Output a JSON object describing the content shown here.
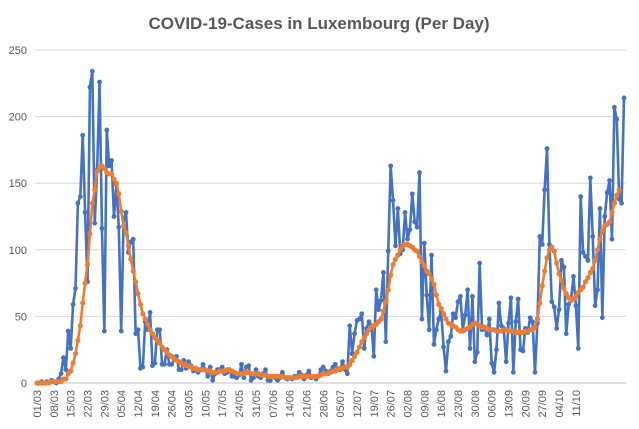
{
  "chart_data": {
    "type": "line",
    "title": "COVID-19-Cases in Luxembourg (Per Day)",
    "xlabel": "",
    "ylabel": "",
    "ylim": [
      0,
      250
    ],
    "yticks": [
      0,
      50,
      100,
      150,
      200,
      250
    ],
    "grid": true,
    "legend": "none",
    "start_date": "2020-03-01",
    "end_date": "2020-10-14",
    "x_tick_labels": [
      "01/03",
      "08/03",
      "15/03",
      "22/03",
      "29/03",
      "05/04",
      "12/04",
      "19/04",
      "26/04",
      "03/05",
      "10/05",
      "17/05",
      "24/05",
      "31/05",
      "07/06",
      "14/06",
      "21/06",
      "28/06",
      "05/07",
      "12/07",
      "19/07",
      "26/07",
      "02/08",
      "09/08",
      "16/08",
      "23/08",
      "30/08",
      "06/09",
      "13/09",
      "20/09",
      "27/09",
      "04/10",
      "11/10"
    ],
    "colors": {
      "daily": "#4472C4",
      "average": "#ED7D31"
    },
    "series": [
      {
        "key": "daily",
        "values": [
          0,
          0,
          1,
          0,
          1,
          0,
          2,
          1,
          0,
          3,
          7,
          19,
          10,
          39,
          26,
          59,
          71,
          135,
          140,
          186,
          128,
          76,
          222,
          234,
          120,
          160,
          226,
          116,
          39,
          190,
          163,
          167,
          125,
          149,
          117,
          39,
          123,
          128,
          98,
          106,
          108,
          37,
          40,
          11,
          12,
          46,
          40,
          53,
          13,
          15,
          40,
          40,
          14,
          14,
          25,
          14,
          14,
          18,
          20,
          10,
          10,
          17,
          11,
          16,
          13,
          9,
          10,
          8,
          10,
          14,
          10,
          5,
          12,
          2,
          7,
          10,
          10,
          12,
          7,
          8,
          10,
          5,
          5,
          4,
          6,
          14,
          4,
          12,
          13,
          2,
          4,
          10,
          5,
          4,
          7,
          10,
          2,
          2,
          5,
          4,
          2,
          4,
          8,
          4,
          3,
          4,
          3,
          5,
          5,
          8,
          6,
          3,
          6,
          9,
          4,
          5,
          3,
          5,
          10,
          12,
          9,
          8,
          9,
          12,
          14,
          10,
          10,
          16,
          10,
          7,
          43,
          22,
          37,
          47,
          48,
          52,
          26,
          41,
          46,
          43,
          20,
          70,
          55,
          62,
          83,
          31,
          99,
          163,
          137,
          103,
          131,
          97,
          100,
          128,
          108,
          115,
          142,
          121,
          117,
          158,
          48,
          105,
          66,
          40,
          96,
          29,
          40,
          48,
          54,
          27,
          9,
          31,
          35,
          52,
          49,
          61,
          65,
          40,
          51,
          70,
          26,
          65,
          16,
          23,
          90,
          40,
          42,
          36,
          48,
          15,
          8,
          25,
          60,
          43,
          41,
          16,
          45,
          64,
          8,
          46,
          63,
          25,
          24,
          41,
          38,
          49,
          46,
          8,
          45,
          110,
          104,
          145,
          176,
          104,
          61,
          57,
          41,
          55,
          92,
          87,
          37,
          59,
          63,
          80,
          58,
          26,
          140,
          98,
          95,
          92,
          154,
          110,
          58,
          70,
          131,
          49,
          125,
          143,
          152,
          108,
          207,
          198,
          138,
          135,
          214
        ]
      },
      {
        "key": "average",
        "values": [
          0,
          0,
          0,
          0,
          0,
          0,
          1,
          1,
          1,
          1,
          1,
          3,
          3,
          7,
          9,
          15,
          22,
          32,
          43,
          60,
          75,
          89,
          112,
          135,
          145,
          159,
          162,
          163,
          161,
          158,
          157,
          157,
          153,
          150,
          142,
          129,
          118,
          113,
          103,
          93,
          84,
          76,
          67,
          59,
          52,
          48,
          44,
          40,
          37,
          34,
          32,
          30,
          27,
          25,
          23,
          21,
          20,
          18,
          17,
          16,
          15,
          14,
          13,
          13,
          12,
          11,
          11,
          10,
          10,
          10,
          10,
          9,
          9,
          8,
          8,
          8,
          9,
          9,
          9,
          10,
          10,
          9,
          8,
          7,
          7,
          7,
          7,
          8,
          8,
          7,
          7,
          7,
          7,
          6,
          6,
          6,
          5,
          5,
          5,
          5,
          5,
          5,
          5,
          4,
          4,
          4,
          4,
          4,
          4,
          5,
          5,
          5,
          5,
          5,
          5,
          5,
          5,
          5,
          6,
          7,
          7,
          7,
          8,
          9,
          9,
          10,
          11,
          11,
          12,
          12,
          14,
          17,
          20,
          23,
          27,
          31,
          34,
          37,
          40,
          42,
          43,
          44,
          46,
          48,
          54,
          61,
          70,
          81,
          89,
          93,
          96,
          100,
          103,
          104,
          104,
          103,
          102,
          100,
          99,
          95,
          91,
          88,
          84,
          82,
          78,
          74,
          66,
          59,
          56,
          52,
          48,
          45,
          44,
          43,
          42,
          40,
          39,
          39,
          40,
          41,
          42,
          44,
          45,
          44,
          43,
          42,
          42,
          41,
          40,
          40,
          40,
          39,
          39,
          39,
          40,
          40,
          39,
          39,
          39,
          38,
          38,
          38,
          38,
          39,
          39,
          40,
          40,
          42,
          48,
          60,
          73,
          84,
          94,
          100,
          102,
          99,
          90,
          82,
          77,
          71,
          67,
          64,
          62,
          63,
          65,
          68,
          70,
          72,
          76,
          79,
          83,
          86,
          92,
          100,
          108,
          114,
          118,
          119,
          121,
          128,
          135,
          141,
          145
        ]
      }
    ]
  }
}
